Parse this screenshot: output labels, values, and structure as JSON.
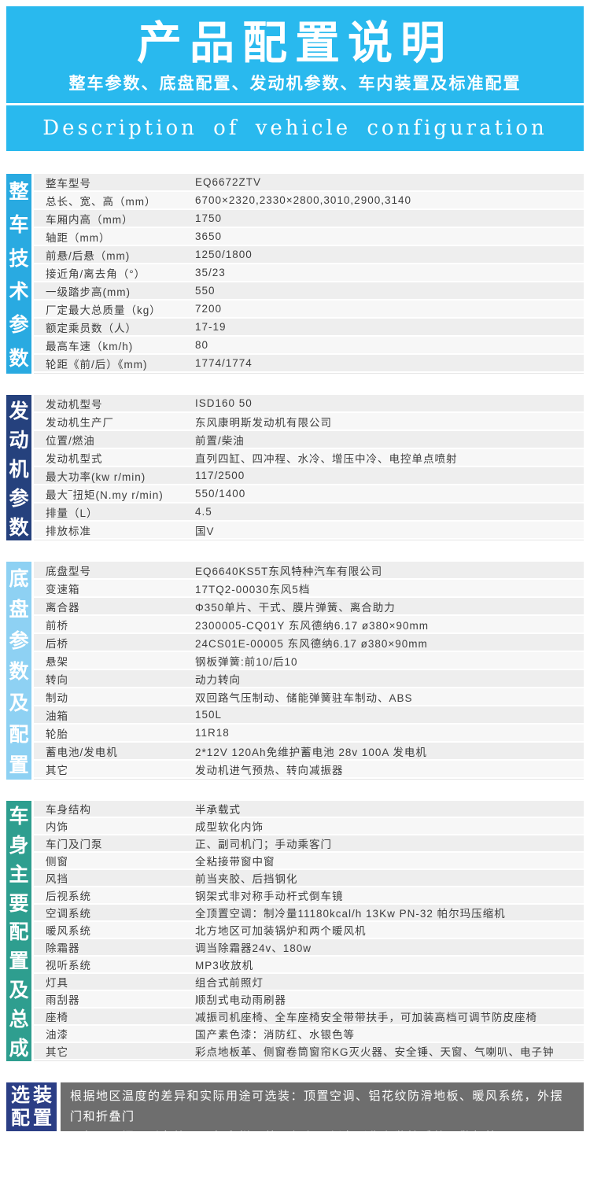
{
  "header": {
    "title": "产品配置说明",
    "subtitle": "整车参数、底盘配置、发动机参数、车内装置及标准配置",
    "subtitle_en": "Description of vehicle configuration"
  },
  "colors": {
    "header_bg": "#29b9ee",
    "vehicle_bar": "#29aae1",
    "engine_bar": "#25417d",
    "chassis_bar": "#8ed1f3",
    "body_bar": "#2e9e8f",
    "optional_label_bg": "#2b3e85",
    "optional_text_bg": "#6e6e6e",
    "row_odd_bg": "#eeeeee",
    "row_even_bg": "#f7f7f7"
  },
  "sections": [
    {
      "id": "vehicle-specs",
      "side_label": "整车技术参数",
      "bar_color": "#29aae1",
      "compact": false,
      "rows": [
        [
          "整车型号",
          "EQ6672ZTV"
        ],
        [
          "总长、宽、高（mm）",
          "6700×2320,2330×2800,3010,2900,3140"
        ],
        [
          "车厢内高（mm）",
          "1750"
        ],
        [
          "轴距（mm）",
          "3650"
        ],
        [
          "前悬/后悬（mm)",
          "1250/1800"
        ],
        [
          "接近角/离去角（°）",
          "35/23"
        ],
        [
          "一级踏步高(mm)",
          "550"
        ],
        [
          "厂定最大总质量（kg）",
          "7200"
        ],
        [
          "额定乘员数（人）",
          "17-19"
        ],
        [
          "最高车速（km/h)",
          "80"
        ],
        [
          "轮距《前/后）《mm)",
          "1774/1774"
        ]
      ]
    },
    {
      "id": "engine-specs",
      "side_label": "发动机参数",
      "bar_color": "#25417d",
      "compact": false,
      "rows": [
        [
          "发动机型号",
          "ISD160 50"
        ],
        [
          "发动机生产厂",
          "东风康明斯发动机有限公司"
        ],
        [
          "位置/燃油",
          "前置/柴油"
        ],
        [
          "发动机型式",
          "直列四缸、四冲程、水冷、增压中冷、电控单点喷射"
        ],
        [
          "最大功率(kw r/min)",
          "117/2500"
        ],
        [
          "最大‾扭矩(N.my r/min)",
          "550/1400"
        ],
        [
          "排量（L）",
          "4.5"
        ],
        [
          "排放标准",
          "国V"
        ]
      ]
    },
    {
      "id": "chassis-specs",
      "side_label": "底盘参数及配置",
      "bar_color": "#8ed1f3",
      "compact": false,
      "rows": [
        [
          "底盘型号",
          "EQ6640KS5T东风特种汽车有限公司"
        ],
        [
          "变速箱",
          "17TQ2-00030东风5档"
        ],
        [
          "离合器",
          "Φ350单片、干式、膜片弹簧、离合助力"
        ],
        [
          "前桥",
          "2300005-CQ01Y 东风德纳6.17 ø380×90mm"
        ],
        [
          "后桥",
          "24CS01E-00005 东风德纳6.17 ø380×90mm"
        ],
        [
          "悬架",
          "钢板弹簧:前10/后10"
        ],
        [
          "转向",
          "动力转向"
        ],
        [
          "制动",
          "双回路气压制动、储能弹簧驻车制动、ABS"
        ],
        [
          "油箱",
          "150L"
        ],
        [
          "轮胎",
          "11R18"
        ],
        [
          "蓄电池/发电机",
          "2*12V 120Ah免维护蓄电池 28v 100A 发电机"
        ],
        [
          "其它",
          "发动机进气预热、转向减振器"
        ]
      ]
    },
    {
      "id": "body-specs",
      "side_label": "车身主要配置及总成",
      "bar_color": "#2e9e8f",
      "compact": true,
      "rows": [
        [
          "车身结构",
          "半承载式"
        ],
        [
          "内饰",
          "成型软化内饰"
        ],
        [
          "车门及门泵",
          "正、副司机门；手动乘客门"
        ],
        [
          "侧窗",
          "全粘接带窗中窗"
        ],
        [
          "风挡",
          "前当夹胶、后挡钢化"
        ],
        [
          "后视系统",
          "钢架式非对称手动杆式倒车镜"
        ],
        [
          "空调系统",
          "全顶置空调：制冷量11180kcal/h 13Kw PN-32 帕尔玛压缩机"
        ],
        [
          "暖风系统",
          "北方地区可加装锅炉和两个暖风机"
        ],
        [
          "除霜器",
          "调当除霜器24v、180w"
        ],
        [
          "视听系统",
          "MP3收放机"
        ],
        [
          "灯具",
          "组合式前照灯"
        ],
        [
          "雨刮器",
          "顺刮式电动雨刷器"
        ],
        [
          "座椅",
          "减振司机座椅、全车座椅安全带带扶手，可加装高档可调节防皮座椅"
        ],
        [
          "油漆",
          "国产素色漆：消防红、水银色等"
        ],
        [
          "其它",
          "彩点地板革、侧窗卷筒窗帘KG灭火器、安全锤、天窗、气喇叭、电子钟"
        ]
      ]
    }
  ],
  "optional": {
    "label_line1": "选装",
    "label_line2": "配置",
    "text_line1": "根据地区温度的差异和实际用途可选装：顶置空调、铝花纹防滑地板、暖风系统，外摆门和折叠门",
    "text_line2": "尾部双开门，后备箱，顶部爬梯，外观颜色，倒车影像和监控系统，警灯等、"
  }
}
